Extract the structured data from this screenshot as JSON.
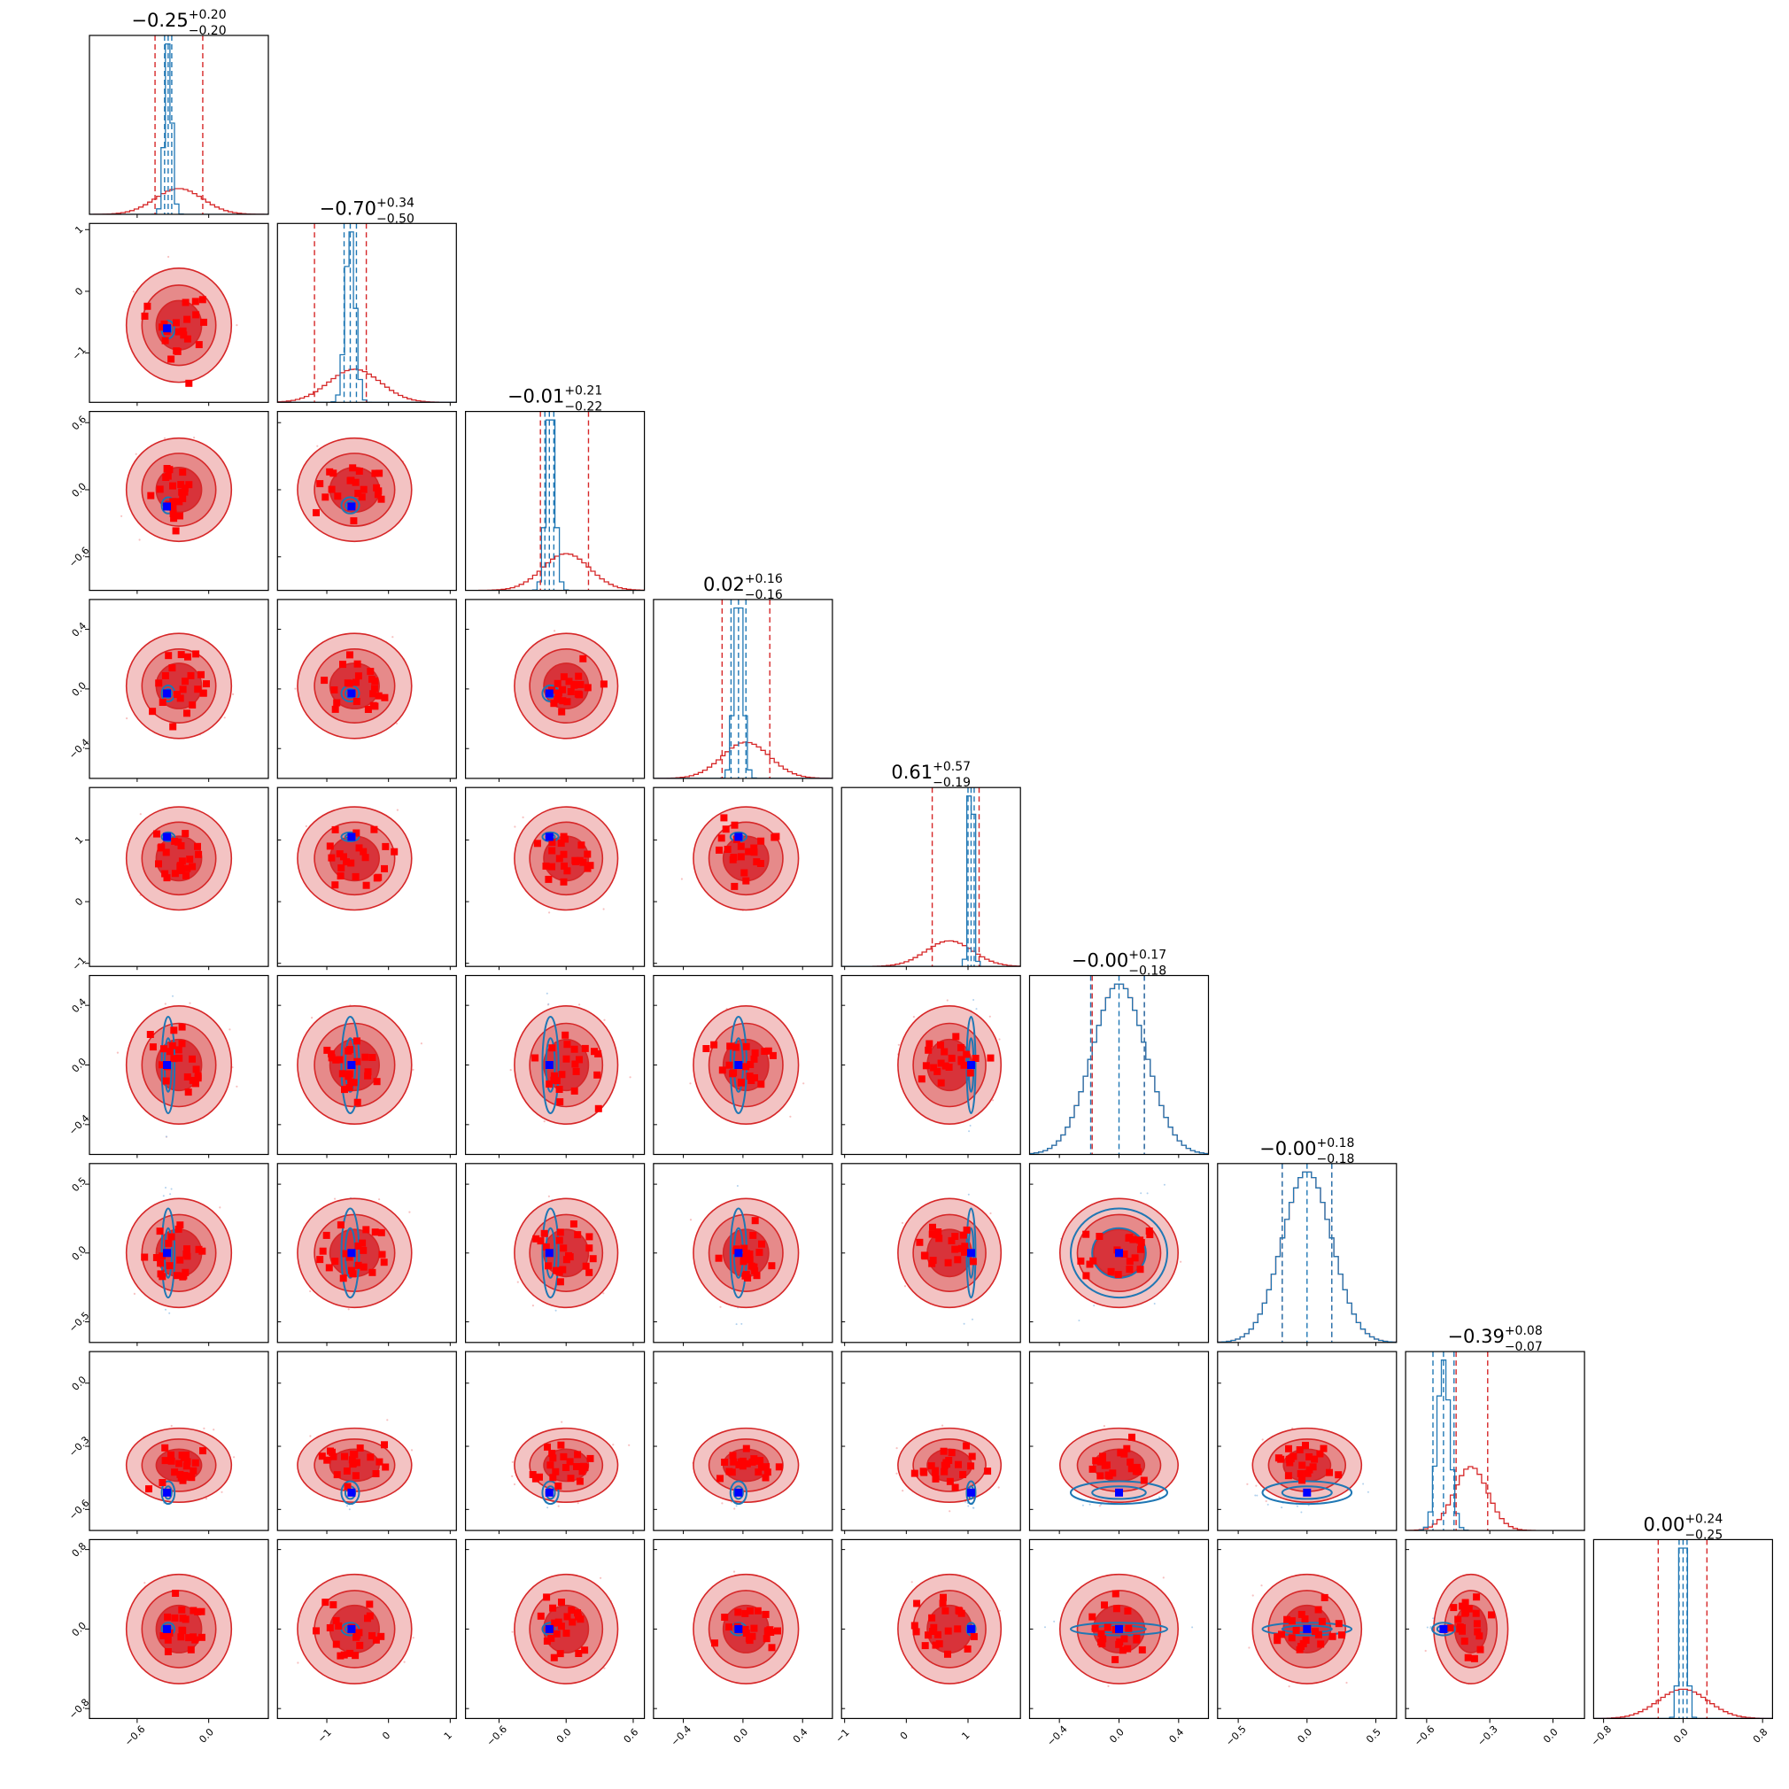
{
  "chart_data": {
    "type": "corner",
    "n_params": 9,
    "colors": {
      "posterior_a": "#d62728",
      "posterior_b": "#1f77b4",
      "truth_marker": "#0000ff",
      "samples_marker": "#ff0000"
    },
    "titles": [
      {
        "median": "−0.25",
        "plus": "+0.20",
        "minus": "−0.20"
      },
      {
        "median": "−0.70",
        "plus": "+0.34",
        "minus": "−0.50"
      },
      {
        "median": "−0.01",
        "plus": "+0.21",
        "minus": "−0.22"
      },
      {
        "median": "0.02",
        "plus": "+0.16",
        "minus": "−0.16"
      },
      {
        "median": "0.61",
        "plus": "+0.57",
        "minus": "−0.19"
      },
      {
        "median": "−0.00",
        "plus": "+0.17",
        "minus": "−0.18"
      },
      {
        "median": "−0.00",
        "plus": "+0.18",
        "minus": "−0.18"
      },
      {
        "median": "−0.39",
        "plus": "+0.08",
        "minus": "−0.07"
      },
      {
        "median": "0.00",
        "plus": "+0.24",
        "minus": "−0.25"
      }
    ],
    "axes": [
      {
        "range": [
          -1.0,
          0.5
        ],
        "ticks": [
          -0.6,
          0.0
        ],
        "tick_labels": [
          "−0.6",
          "0.0"
        ]
      },
      {
        "range": [
          -1.8,
          1.1
        ],
        "ticks": [
          -1,
          0,
          1
        ],
        "tick_labels": [
          "−1",
          "0",
          "1"
        ]
      },
      {
        "range": [
          -0.9,
          0.7
        ],
        "ticks": [
          -0.6,
          0.0,
          0.6
        ],
        "tick_labels": [
          "−0.6",
          "0.0",
          "0.6"
        ]
      },
      {
        "range": [
          -0.6,
          0.6
        ],
        "ticks": [
          -0.4,
          0.0,
          0.4
        ],
        "tick_labels": [
          "−0.4",
          "0.0",
          "0.4"
        ]
      },
      {
        "range": [
          -1.05,
          1.85
        ],
        "ticks": [
          -1,
          0,
          1
        ],
        "tick_labels": [
          "−1",
          "0",
          "1"
        ]
      },
      {
        "range": [
          -0.6,
          0.6
        ],
        "ticks": [
          -0.4,
          0.0,
          0.4
        ],
        "tick_labels": [
          "−0.4",
          "0.0",
          "0.4"
        ]
      },
      {
        "range": [
          -0.65,
          0.65
        ],
        "ticks": [
          -0.5,
          0.0,
          0.5
        ],
        "tick_labels": [
          "−0.5",
          "0.0",
          "0.5"
        ]
      },
      {
        "range": [
          -0.7,
          0.15
        ],
        "ticks": [
          -0.6,
          -0.3,
          0.0
        ],
        "tick_labels": [
          "−0.6",
          "−0.3",
          "0.0"
        ]
      },
      {
        "range": [
          -0.9,
          0.9
        ],
        "ticks": [
          -0.8,
          0.0,
          0.8
        ],
        "tick_labels": [
          "−0.8",
          "0.0",
          "0.8"
        ]
      }
    ],
    "truth": [
      -0.35,
      -0.6,
      -0.15,
      -0.03,
      1.05,
      0.0,
      0.0,
      -0.52,
      0.0
    ],
    "posterior_a": {
      "means": [
        -0.25,
        -0.55,
        0.0,
        0.02,
        0.7,
        0.0,
        0.0,
        -0.39,
        0.0
      ],
      "sds": [
        0.2,
        0.42,
        0.21,
        0.16,
        0.38,
        0.18,
        0.18,
        0.08,
        0.25
      ],
      "quantile_lines": [
        [
          -0.45,
          -0.05
        ],
        [
          -1.2,
          -0.36
        ],
        [
          -0.23,
          0.2
        ],
        [
          -0.14,
          0.18
        ],
        [
          0.42,
          1.18
        ],
        [
          -0.18,
          0.17
        ],
        [
          -0.18,
          0.18
        ],
        [
          -0.46,
          -0.31
        ],
        [
          -0.25,
          0.24
        ]
      ]
    },
    "posterior_b": {
      "means": [
        -0.34,
        -0.62,
        -0.14,
        -0.03,
        1.05,
        0.0,
        0.0,
        -0.52,
        0.0
      ],
      "sds": [
        0.03,
        0.08,
        0.04,
        0.03,
        0.04,
        0.18,
        0.18,
        0.03,
        0.035
      ],
      "quantile_lines": [
        [
          -0.37,
          -0.34,
          -0.31
        ],
        [
          -0.72,
          -0.62,
          -0.52
        ],
        [
          -0.19,
          -0.15,
          -0.11
        ],
        [
          -0.08,
          -0.03,
          0.02
        ],
        [
          1.0,
          1.05,
          1.1
        ],
        [
          -0.19,
          0.0,
          0.17
        ],
        [
          -0.18,
          0.0,
          0.18
        ],
        [
          -0.57,
          -0.52,
          -0.47
        ],
        [
          -0.04,
          0.0,
          0.04
        ]
      ]
    }
  }
}
